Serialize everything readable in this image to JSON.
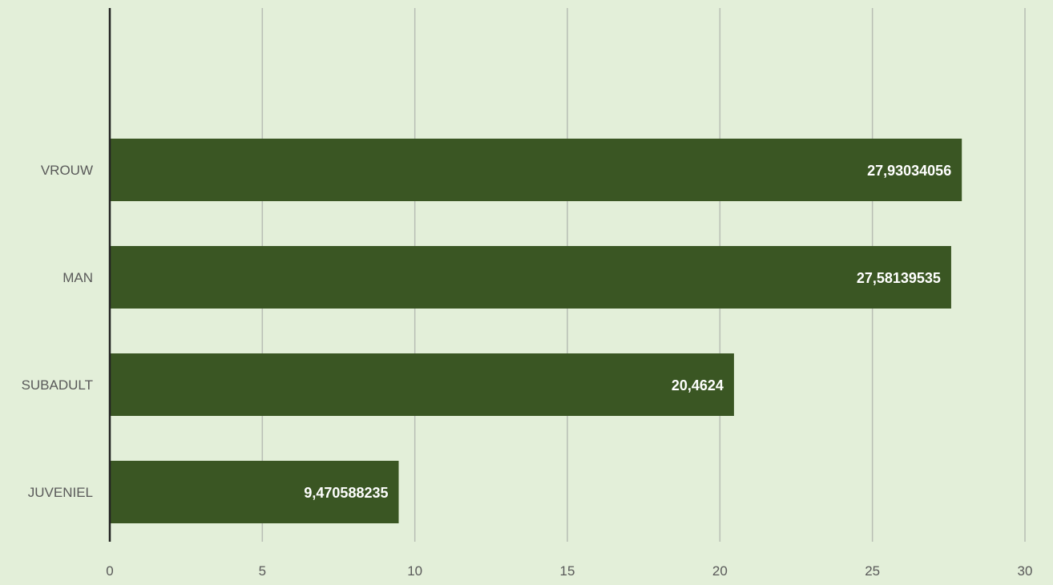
{
  "colors": {
    "background": "#e3efd9",
    "bar": "#3a5623",
    "gridline": "#b8beb4",
    "axis": "#222222",
    "label_text": "#595959",
    "value_text": "#ffffff"
  },
  "chart_data": {
    "type": "bar",
    "orientation": "horizontal",
    "categories": [
      "VROUW",
      "MAN",
      "SUBADULT",
      "JUVENIEL"
    ],
    "values": [
      27.93034056,
      27.58139535,
      20.4624,
      9.470588235
    ],
    "value_labels": [
      "27,93034056",
      "27,58139535",
      "20,4624",
      "9,470588235"
    ],
    "xlim": [
      0,
      30
    ],
    "xticks": [
      0,
      5,
      10,
      15,
      20,
      25,
      30
    ],
    "xtick_labels": [
      "0",
      "5",
      "10",
      "15",
      "20",
      "25",
      "30"
    ],
    "grid": true,
    "title": "",
    "xlabel": "",
    "ylabel": ""
  }
}
